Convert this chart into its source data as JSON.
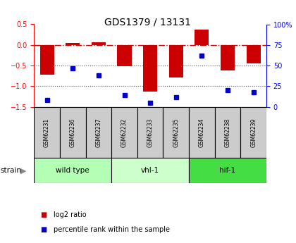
{
  "title": "GDS1379 / 13131",
  "samples": [
    "GSM62231",
    "GSM62236",
    "GSM62237",
    "GSM62232",
    "GSM62233",
    "GSM62235",
    "GSM62234",
    "GSM62238",
    "GSM62239"
  ],
  "log2_ratio": [
    -0.72,
    0.05,
    0.07,
    -0.52,
    -1.12,
    -0.78,
    0.37,
    -0.62,
    -0.45
  ],
  "percentile_rank": [
    8,
    47,
    38,
    14,
    5,
    12,
    62,
    20,
    18
  ],
  "groups": [
    {
      "label": "wild type",
      "start": 0,
      "end": 3,
      "color": "#b3ffb3"
    },
    {
      "label": "vhl-1",
      "start": 3,
      "end": 6,
      "color": "#ccffcc"
    },
    {
      "label": "hif-1",
      "start": 6,
      "end": 9,
      "color": "#44dd44"
    }
  ],
  "ylim_left": [
    -1.5,
    0.5
  ],
  "ylim_right": [
    0,
    100
  ],
  "yticks_left": [
    -1.5,
    -1.0,
    -0.5,
    0.0,
    0.5
  ],
  "yticks_right": [
    0,
    25,
    50,
    75,
    100
  ],
  "bar_color": "#cc0000",
  "dot_color": "#0000cc",
  "hline_color": "#cc0000",
  "dotted_line_color": "#555555",
  "bg_color": "#ffffff",
  "sample_box_color": "#cccccc",
  "legend_bar": "log2 ratio",
  "legend_dot": "percentile rank within the sample"
}
